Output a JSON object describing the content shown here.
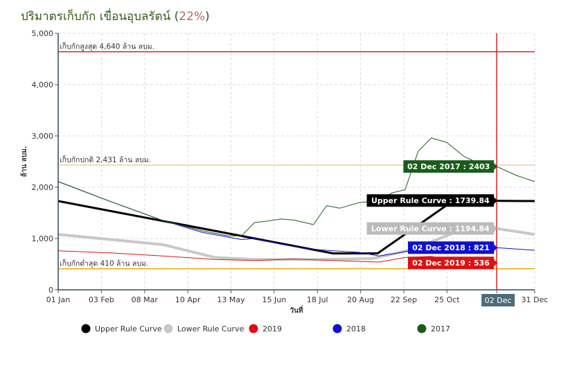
{
  "title": {
    "main": "ปริมาตรเก็บกัก เขื่อนอุบลรัตน์",
    "percent": "22%"
  },
  "chart_data": {
    "type": "line",
    "xlabel": "วันที่",
    "ylabel": "ล้าน ลบม.",
    "ylim": [
      0,
      5000
    ],
    "yticks": [
      "0",
      "1,000",
      "2,000",
      "3,000",
      "4,000",
      "5,000"
    ],
    "xticks": [
      "01 Jan",
      "03 Feb",
      "08 Mar",
      "10 Apr",
      "13 May",
      "15 Jun",
      "18 Jul",
      "20 Aug",
      "22 Sep",
      "25 Oct",
      "02 Dec",
      "31 Dec"
    ],
    "xtick_days": [
      0,
      33,
      66,
      99,
      132,
      165,
      198,
      231,
      264,
      297,
      335,
      364
    ],
    "grid": true,
    "legend_placement": "bottom",
    "reference_lines": [
      {
        "label": "เก็บกักสูงสุด 4,640 ล้าน ลบม.",
        "value": 4640,
        "color": "#d62020"
      },
      {
        "label": "เก็บกักปกติ 2,431 ล้าน ลบม.",
        "value": 2431,
        "color": "#f5cba0"
      },
      {
        "label": "เก็บกักต่ำสุด 410 ล้าน ลบม.",
        "value": 410,
        "color": "#f0a800"
      }
    ],
    "cursor": {
      "label": "02 Dec",
      "day": 335,
      "color": "#d62020"
    },
    "series": [
      {
        "name": "Upper Rule Curve",
        "color": "#000000",
        "width": 3,
        "x": [
          0,
          210,
          244,
          302,
          364
        ],
        "y": [
          1730,
          710,
          710,
          1740,
          1730
        ]
      },
      {
        "name": "Lower Rule Curve",
        "color": "#c8c8c8",
        "width": 4,
        "x": [
          0,
          80,
          120,
          150,
          200,
          240,
          270,
          305,
          335,
          364
        ],
        "y": [
          1080,
          880,
          630,
          590,
          590,
          610,
          780,
          1140,
          1195,
          1080
        ]
      },
      {
        "name": "2019",
        "color": "#e01010",
        "width": 1,
        "x": [
          0,
          40,
          80,
          120,
          150,
          180,
          210,
          245,
          265,
          285,
          305,
          320,
          335
        ],
        "y": [
          760,
          720,
          660,
          590,
          570,
          600,
          570,
          540,
          630,
          650,
          550,
          537,
          536
        ]
      },
      {
        "name": "2018",
        "color": "#1010d0",
        "width": 1,
        "x": [
          0,
          40,
          80,
          110,
          140,
          150,
          170,
          190,
          210,
          230,
          245,
          260,
          280,
          300,
          320,
          335,
          364
        ],
        "y": [
          2110,
          1720,
          1350,
          1120,
          980,
          1000,
          890,
          800,
          760,
          730,
          660,
          720,
          820,
          830,
          823,
          821,
          770
        ]
      },
      {
        "name": "2017",
        "color": "#1a5c1a",
        "width": 1,
        "x": [
          0,
          40,
          80,
          110,
          130,
          140,
          150,
          160,
          170,
          180,
          195,
          205,
          215,
          230,
          245,
          255,
          265,
          275,
          285,
          297,
          310,
          320,
          335,
          350,
          364
        ],
        "y": [
          2110,
          1720,
          1350,
          1150,
          1050,
          1050,
          1310,
          1340,
          1380,
          1360,
          1270,
          1640,
          1590,
          1700,
          1740,
          1890,
          1950,
          2700,
          2960,
          2870,
          2600,
          2480,
          2403,
          2230,
          2110
        ]
      }
    ],
    "tooltips": [
      {
        "text": "02 Dec 2017 : 2403",
        "bg": "#1a5c1a",
        "color": "#ffffff",
        "value": 2403
      },
      {
        "text": "Upper Rule Curve : 1739.84",
        "bg": "#000000",
        "color": "#ffffff",
        "value": 1740
      },
      {
        "text": "Lower Rule Curve : 1194.84",
        "bg": "#bbbbbb",
        "color": "#ffffff",
        "value": 1195
      },
      {
        "text": "02 Dec 2018 : 821",
        "bg": "#1010d0",
        "color": "#ffffff",
        "value": 821
      },
      {
        "text": "02 Dec 2019 : 536",
        "bg": "#e01010",
        "color": "#ffffff",
        "value": 536
      }
    ],
    "legend": [
      {
        "label": "Upper Rule Curve",
        "color": "#000000"
      },
      {
        "label": "Lower Rule Curve",
        "color": "#c8c8c8"
      },
      {
        "label": "2019",
        "color": "#e01010"
      },
      {
        "label": "2018",
        "color": "#1010d0"
      },
      {
        "label": "2017",
        "color": "#1a5c1a"
      }
    ]
  }
}
